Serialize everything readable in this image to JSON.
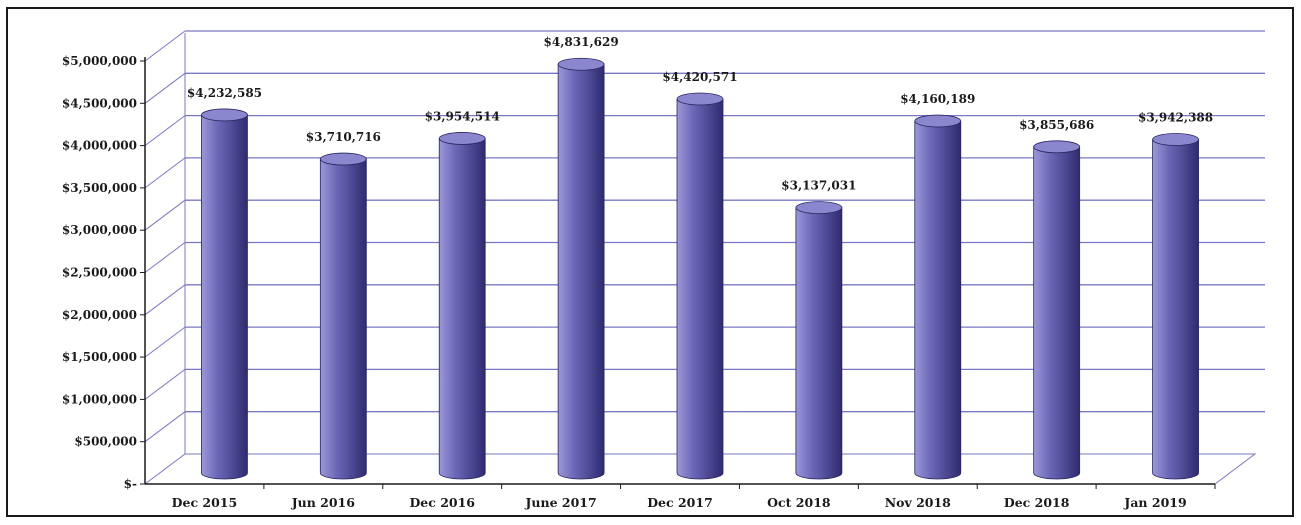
{
  "chart_data": {
    "type": "bar",
    "style": "3d-cylinder",
    "categories": [
      "Dec 2015",
      "Jun 2016",
      "Dec 2016",
      "June 2017",
      "Dec 2017",
      "Oct 2018",
      "Nov 2018",
      "Dec 2018",
      "Jan 2019"
    ],
    "values": [
      4232585,
      3710716,
      3954514,
      4831629,
      4420571,
      3137031,
      4160189,
      3855686,
      3942388
    ],
    "data_labels": [
      "$4,232,585",
      "$3,710,716",
      "$3,954,514",
      "$4,831,629",
      "$4,420,571",
      "$3,137,031",
      "$4,160,189",
      "$3,855,686",
      "$3,942,388"
    ],
    "yticks": [
      0,
      500000,
      1000000,
      1500000,
      2000000,
      2500000,
      3000000,
      3500000,
      4000000,
      4500000,
      5000000
    ],
    "ytick_labels": [
      "$-",
      "$500,000",
      "$1,000,000",
      "$1,500,000",
      "$2,000,000",
      "$2,500,000",
      "$3,000,000",
      "$3,500,000",
      "$4,000,000",
      "$4,500,000",
      "$5,000,000"
    ],
    "ylim": [
      0,
      5000000
    ],
    "grid": true,
    "legend": "none",
    "title": "",
    "xlabel": "",
    "ylabel": "",
    "colors": {
      "bar_light": "#9b98d8",
      "bar_mid": "#6c68b8",
      "bar_dark": "#2f2b70",
      "bar_top": "#8a87cf",
      "grid": "#7a78c4",
      "axis": "#1a1a1a"
    }
  }
}
